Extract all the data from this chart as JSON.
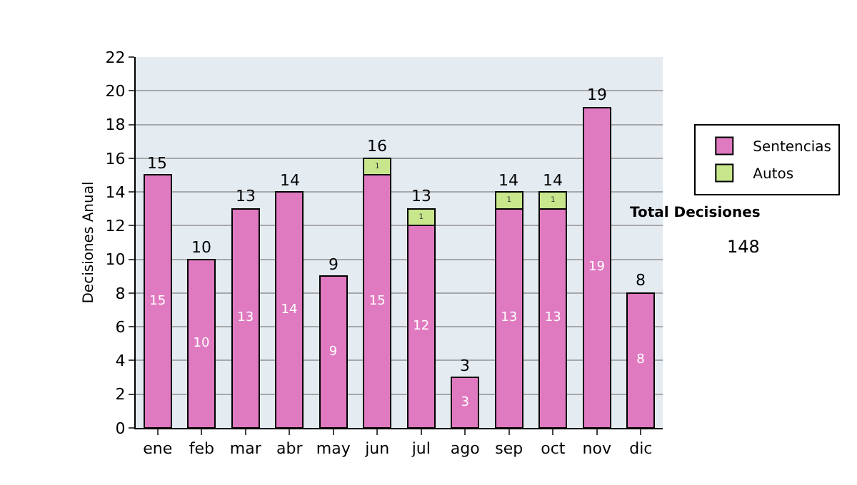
{
  "chart_data": {
    "type": "bar",
    "stacked": true,
    "ylabel": "Decisiones Anual",
    "categories": [
      "ene",
      "feb",
      "mar",
      "abr",
      "may",
      "jun",
      "jul",
      "ago",
      "sep",
      "oct",
      "nov",
      "dic"
    ],
    "series": [
      {
        "name": "Sentencias",
        "color": "#e07ac0",
        "values": [
          15,
          10,
          13,
          14,
          9,
          15,
          12,
          3,
          13,
          13,
          19,
          8
        ],
        "value_labels": [
          "15",
          "10",
          "13",
          "14",
          "9",
          "15",
          "12",
          "3",
          "13",
          "13",
          "19",
          "8"
        ]
      },
      {
        "name": "Autos",
        "color": "#c8e68c",
        "values": [
          null,
          null,
          null,
          null,
          null,
          1,
          1,
          null,
          1,
          1,
          null,
          null
        ],
        "value_labels": [
          null,
          null,
          null,
          null,
          null,
          "1",
          "1",
          null,
          "1",
          "1",
          null,
          null
        ]
      }
    ],
    "totals": [
      "15",
      "10",
      "13",
      "14",
      "9",
      "16",
      "13",
      "3",
      "14",
      "14",
      "19",
      "8"
    ],
    "ylim": [
      0,
      22
    ],
    "yticks": [
      0,
      2,
      4,
      6,
      8,
      10,
      12,
      14,
      16,
      18,
      20,
      22
    ],
    "grid": "y",
    "legend": "right",
    "annotations": [
      "Total Decisiones",
      "148"
    ]
  }
}
